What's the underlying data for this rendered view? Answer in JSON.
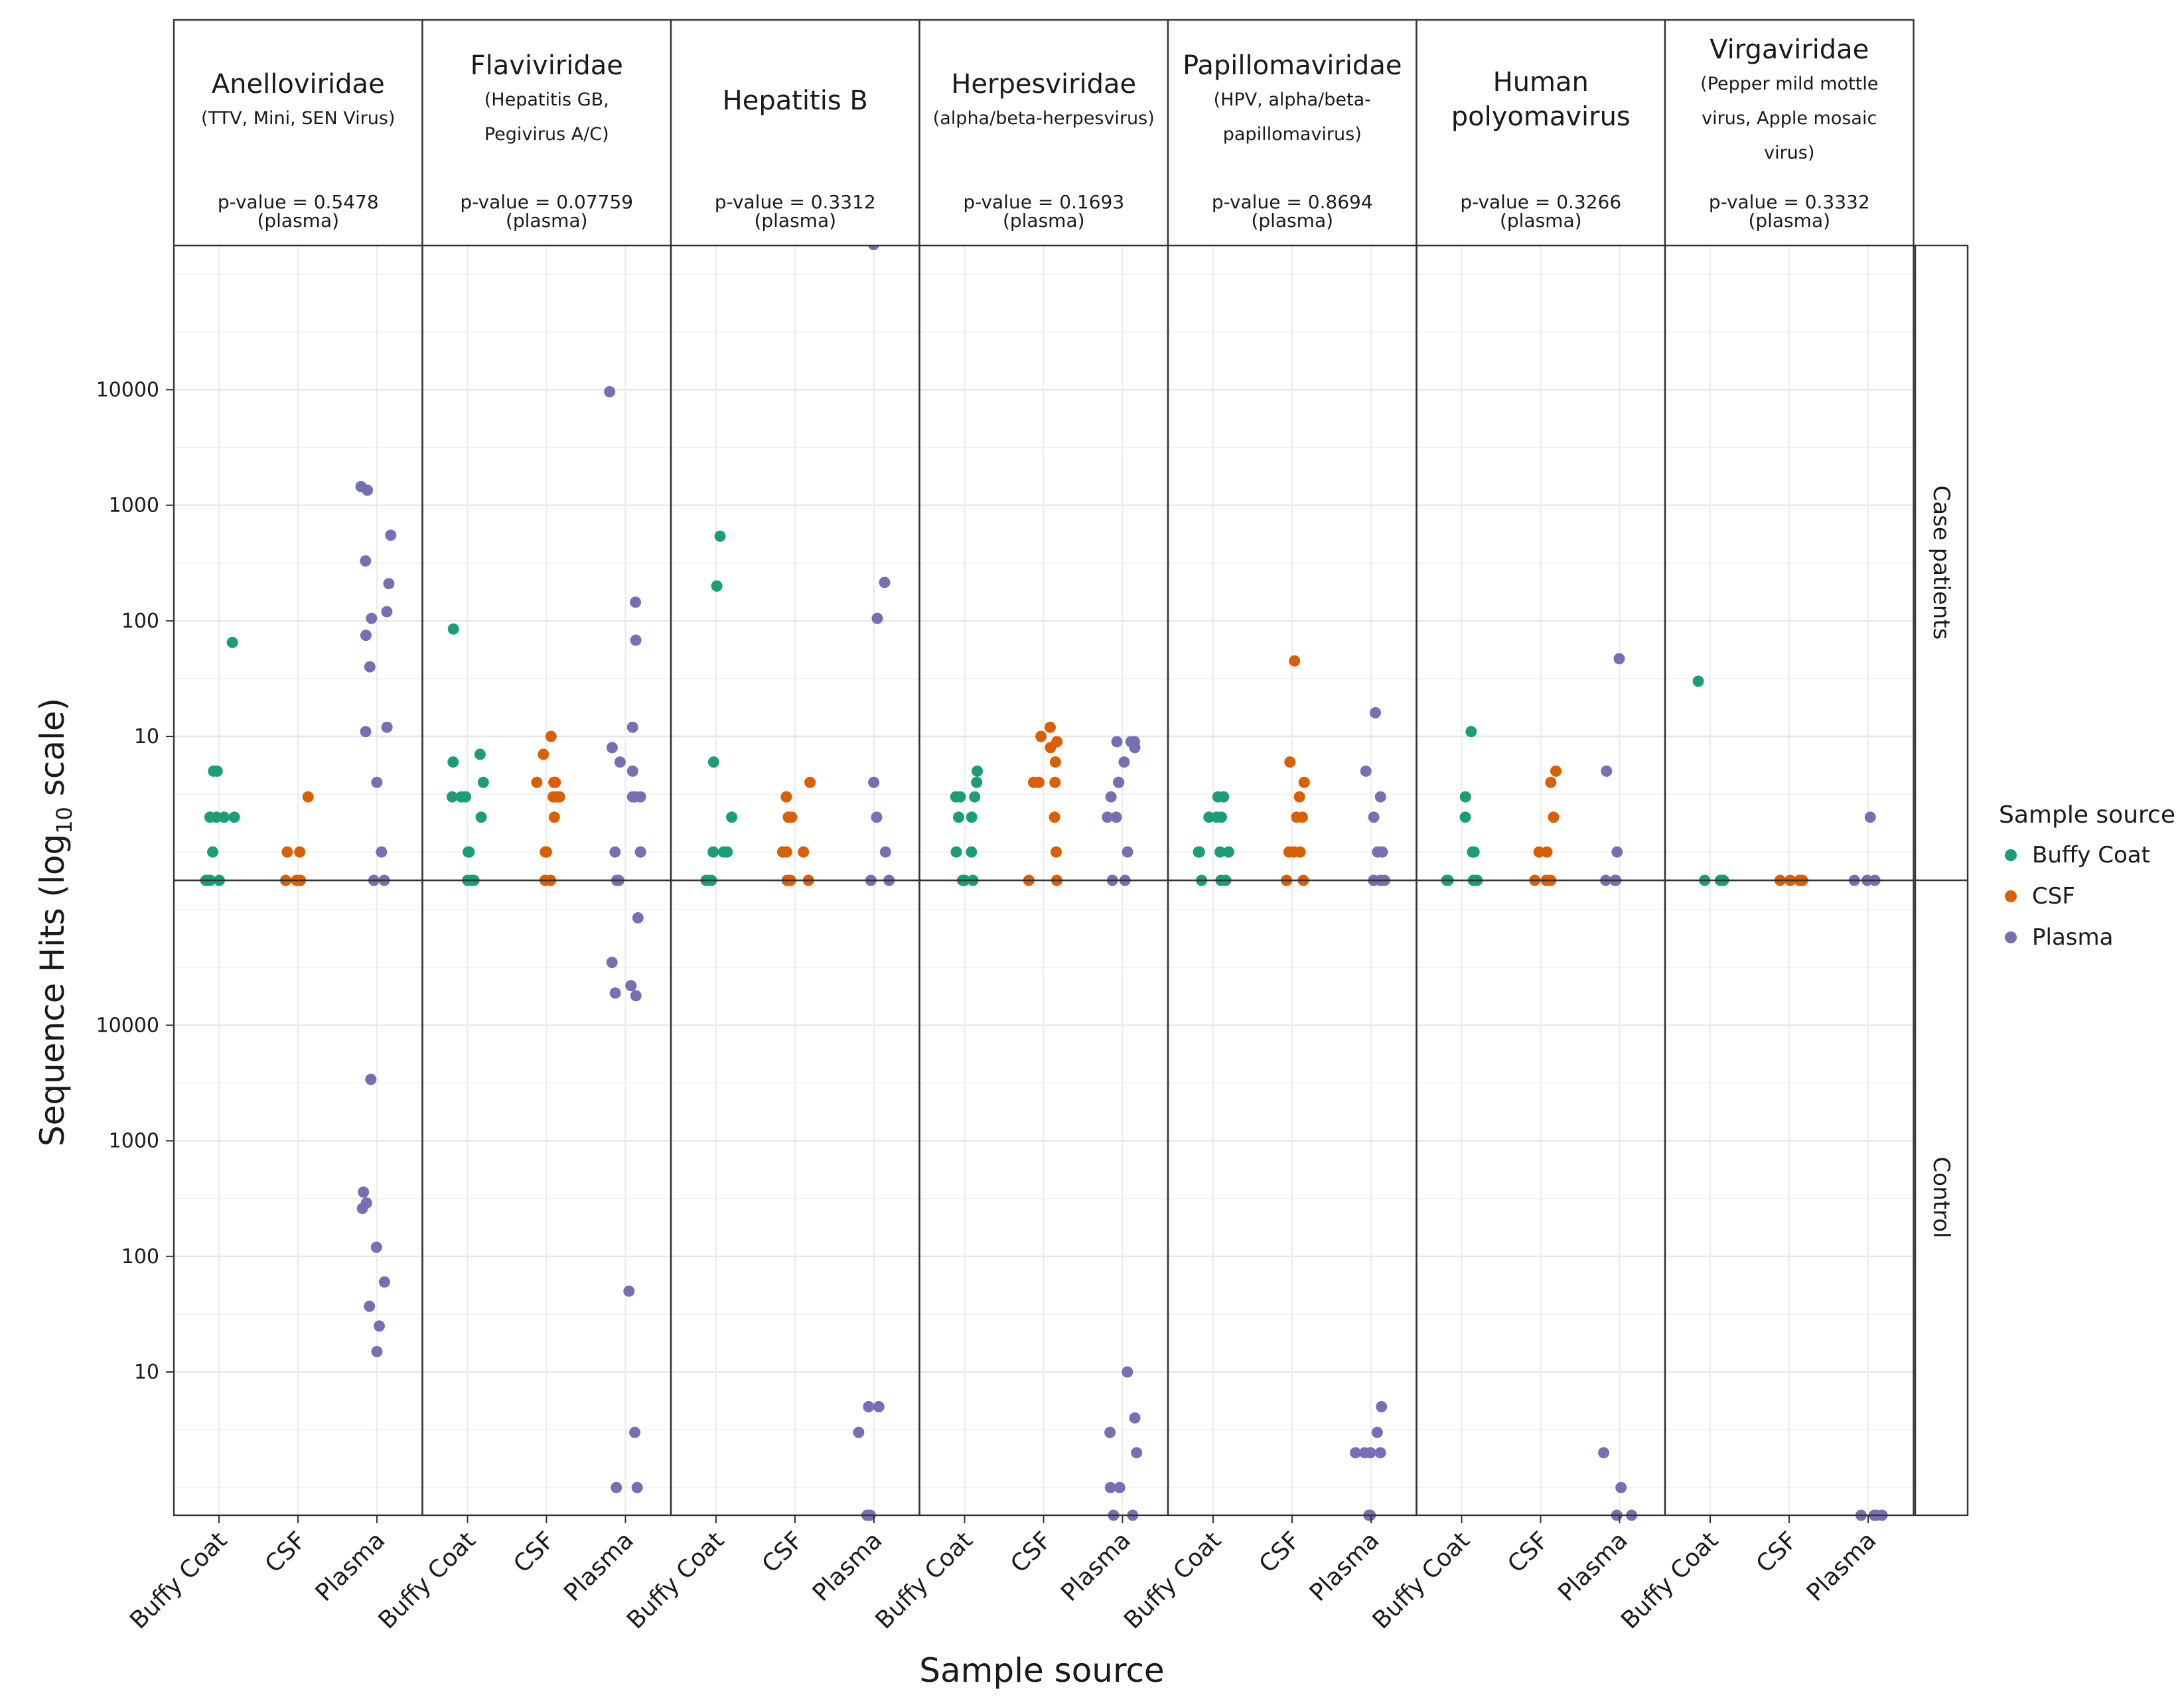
{
  "chart_data": {
    "type": "scatter",
    "xlabel": "Sample source",
    "ylabel": "Sequence Hits (log",
    "ylabel_sub": "10",
    "ylabel_suffix": " scale)",
    "y_scale": "log10",
    "y_ticks": [
      10,
      100,
      1000,
      10000
    ],
    "y_tick_labels": [
      "10",
      "100",
      "1000",
      "10000"
    ],
    "x_categories": [
      "Buffy Coat",
      "CSF",
      "Plasma"
    ],
    "rows": [
      "Case patients",
      "Control"
    ],
    "legend": {
      "title": "Sample source",
      "placement": "right",
      "entries": [
        {
          "label": "Buffy Coat",
          "color": "#1b9e77"
        },
        {
          "label": "CSF",
          "color": "#d95f02"
        },
        {
          "label": "Plasma",
          "color": "#7570b3"
        }
      ]
    },
    "facets": [
      {
        "title": [
          "Anelloviridae"
        ],
        "subtitle": [
          "(TTV, Mini, SEN Virus)"
        ],
        "pvalue": "p-value = 0.5478",
        "pnote": "(plasma)",
        "case": {
          "Buffy Coat": [
            65,
            5,
            5,
            2,
            2,
            2,
            2,
            1,
            0,
            0,
            0,
            0
          ],
          "CSF": [
            3,
            1,
            1,
            0,
            0,
            0,
            0
          ],
          "Plasma": [
            1450,
            1350,
            550,
            330,
            210,
            120,
            105,
            75,
            40,
            12,
            11,
            4,
            1,
            0,
            0
          ]
        },
        "control": {
          "Buffy Coat": [],
          "CSF": [],
          "Plasma": [
            3400,
            360,
            290,
            260,
            120,
            60,
            37,
            25,
            15
          ]
        }
      },
      {
        "title": [
          "Flaviviridae"
        ],
        "subtitle": [
          "(Hepatitis GB,",
          "Pegivirus A/C)"
        ],
        "pvalue": "p-value = 0.07759",
        "pnote": "(plasma)",
        "case": {
          "Buffy Coat": [
            85,
            7,
            6,
            4,
            3,
            3,
            3,
            2,
            1,
            1,
            0,
            0,
            0
          ],
          "CSF": [
            10,
            7,
            4,
            4,
            4,
            3,
            3,
            3,
            2,
            1,
            1,
            0,
            0
          ],
          "Plasma": [
            9600,
            145,
            68,
            12,
            8,
            6,
            5,
            3,
            3,
            3,
            1,
            1,
            1,
            0,
            0
          ]
        },
        "control": {
          "Buffy Coat": [],
          "CSF": [],
          "Plasma": [
            85000,
            35000,
            22000,
            19000,
            18000,
            50,
            3,
            1,
            1
          ]
        }
      },
      {
        "title": [
          "Hepatitis B"
        ],
        "subtitle": [],
        "pvalue": "p-value = 0.3312",
        "pnote": "(plasma)",
        "case": {
          "Buffy Coat": [
            540,
            200,
            6,
            2,
            1,
            1,
            1,
            0,
            0,
            0
          ],
          "CSF": [
            4,
            3,
            2,
            2,
            1,
            1,
            1,
            0,
            0,
            0
          ],
          "Plasma": [
            180000,
            215,
            105,
            4,
            2,
            1,
            0,
            0
          ]
        },
        "control": {
          "Buffy Coat": [],
          "CSF": [],
          "Plasma": [
            5,
            5,
            3,
            0,
            0
          ]
        }
      },
      {
        "title": [
          "Herpesviridae"
        ],
        "subtitle": [
          "(alpha/beta-herpesvirus)"
        ],
        "pvalue": "p-value = 0.1693",
        "pnote": "(plasma)",
        "case": {
          "Buffy Coat": [
            5,
            4,
            3,
            3,
            3,
            2,
            2,
            1,
            1,
            0,
            0,
            0
          ],
          "CSF": [
            12,
            10,
            9,
            8,
            6,
            4,
            4,
            4,
            2,
            1,
            0,
            0
          ],
          "Plasma": [
            9,
            9,
            9,
            8,
            6,
            4,
            4,
            3,
            2,
            2,
            1,
            0,
            0
          ]
        },
        "control": {
          "Buffy Coat": [],
          "CSF": [],
          "Plasma": [
            10,
            4,
            3,
            2,
            1,
            1,
            0,
            0
          ]
        }
      },
      {
        "title": [
          "Papillomaviridae"
        ],
        "subtitle": [
          "(HPV, alpha/beta-",
          "papillomavirus)"
        ],
        "pvalue": "p-value = 0.8694",
        "pnote": "(plasma)",
        "case": {
          "Buffy Coat": [
            3,
            3,
            2,
            2,
            2,
            1,
            1,
            1,
            1,
            0,
            0,
            0
          ],
          "CSF": [
            45,
            6,
            4,
            3,
            2,
            2,
            1,
            1,
            1,
            0,
            0
          ],
          "Plasma": [
            16,
            5,
            3,
            2,
            1,
            1,
            0,
            0,
            0
          ]
        },
        "control": {
          "Buffy Coat": [],
          "CSF": [],
          "Plasma": [
            5,
            3,
            2,
            2,
            2,
            2,
            0,
            0
          ]
        }
      },
      {
        "title": [
          "Human",
          "polyomavirus"
        ],
        "subtitle": [],
        "pvalue": "p-value = 0.3266",
        "pnote": "(plasma)",
        "case": {
          "Buffy Coat": [
            11,
            3,
            2,
            1,
            1,
            0,
            0,
            0,
            0
          ],
          "CSF": [
            5,
            4,
            2,
            1,
            1,
            0,
            0,
            0
          ],
          "Plasma": [
            47,
            5,
            1,
            0,
            0,
            0
          ]
        },
        "control": {
          "Buffy Coat": [],
          "CSF": [],
          "Plasma": [
            2,
            1,
            0,
            0
          ]
        }
      },
      {
        "title": [
          "Virgaviridae"
        ],
        "subtitle": [
          "(Pepper mild mottle",
          "virus, Apple mosaic",
          "virus)"
        ],
        "pvalue": "p-value = 0.3332",
        "pnote": "(plasma)",
        "case": {
          "Buffy Coat": [
            30,
            0,
            0,
            0,
            0
          ],
          "CSF": [
            0,
            0,
            0,
            0
          ],
          "Plasma": [
            2,
            0,
            0,
            0
          ]
        },
        "control": {
          "Buffy Coat": [],
          "CSF": [],
          "Plasma": [
            0,
            0,
            0,
            0
          ]
        }
      }
    ]
  }
}
